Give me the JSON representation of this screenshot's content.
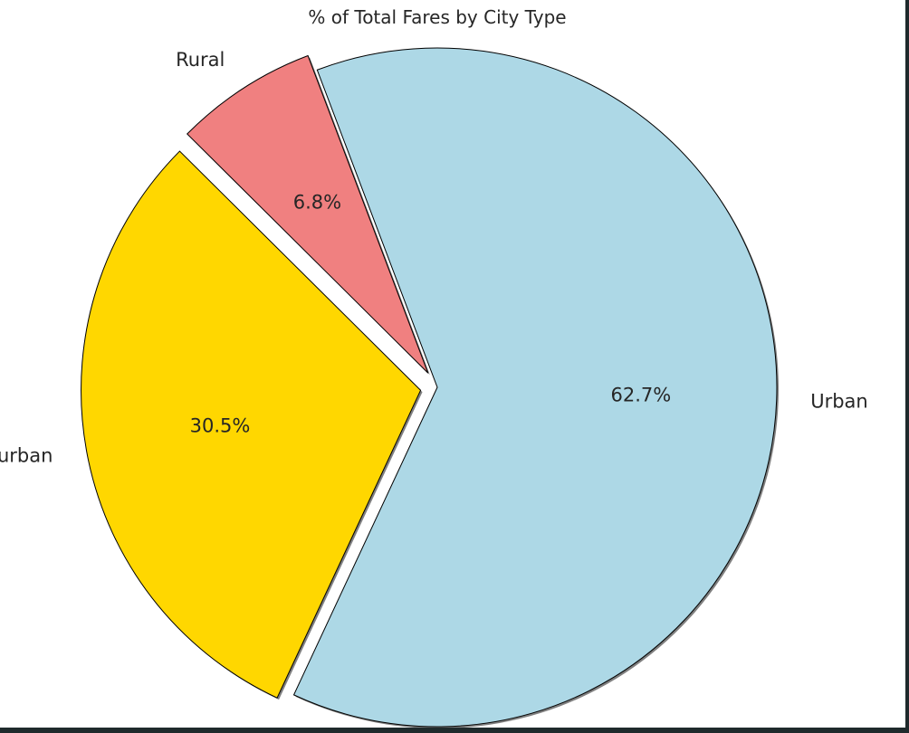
{
  "chart_data": {
    "type": "pie",
    "title": "% of Total Fares by City Type",
    "categories": [
      "Urban",
      "Rural",
      "Suburban"
    ],
    "values": [
      62.7,
      6.8,
      30.5
    ],
    "labels": [
      "62.7%",
      "6.8%",
      "30.5%"
    ],
    "colors": [
      "#ADD8E6",
      "#F08080",
      "#FFD700"
    ],
    "explode": [
      0.0,
      0.05,
      0.05
    ],
    "start_angle_deg": 245,
    "shadow": true,
    "edge_color": "#000000"
  }
}
